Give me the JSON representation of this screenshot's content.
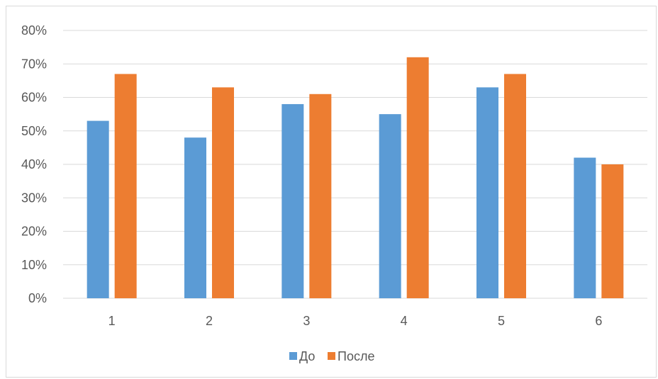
{
  "chart_data": {
    "type": "bar",
    "categories": [
      "1",
      "2",
      "3",
      "4",
      "5",
      "6"
    ],
    "series": [
      {
        "name": "До",
        "values": [
          53,
          48,
          58,
          55,
          63,
          42
        ],
        "color": "#5b9bd5"
      },
      {
        "name": "После",
        "values": [
          67,
          63,
          61,
          72,
          67,
          40
        ],
        "color": "#ed7d31"
      }
    ],
    "ylim": [
      0,
      80
    ],
    "yticks": [
      0,
      10,
      20,
      30,
      40,
      50,
      60,
      70,
      80
    ],
    "ytick_format": "%",
    "grid": true,
    "legend_position": "bottom",
    "title": "",
    "xlabel": "",
    "ylabel": ""
  }
}
